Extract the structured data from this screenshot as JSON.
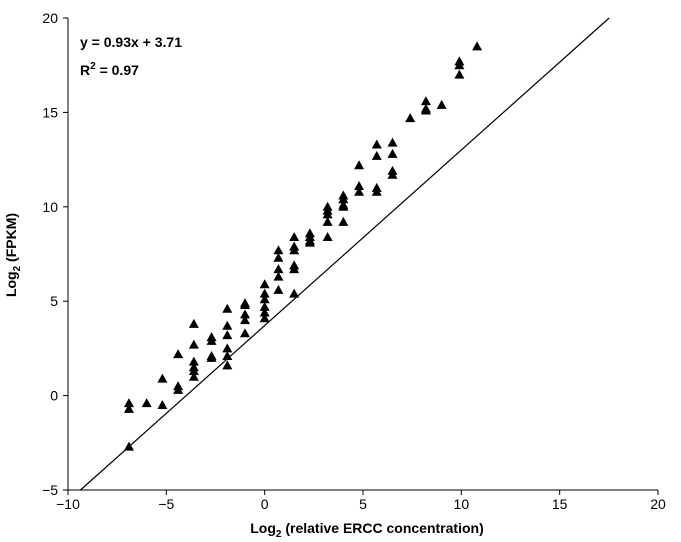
{
  "chart_data": {
    "type": "scatter",
    "title": "",
    "xlabel": {
      "prefix": "Log",
      "subscript": "2",
      "suffix": " (relative ERCC concentration)"
    },
    "ylabel": {
      "prefix": "Log",
      "subscript": "2",
      "suffix": " (FPKM)"
    },
    "xlim": [
      -10,
      20
    ],
    "ylim": [
      -5,
      20
    ],
    "x_ticks": [
      -10,
      -5,
      0,
      5,
      10,
      15,
      20
    ],
    "y_ticks": [
      -5,
      0,
      5,
      10,
      15,
      20
    ],
    "x_tick_labels": [
      "−10",
      "−5",
      "0",
      "5",
      "10",
      "15",
      "20"
    ],
    "y_tick_labels": [
      "−5",
      "0",
      "5",
      "10",
      "15",
      "20"
    ],
    "grid": false,
    "legend": "none",
    "marker": "triangle",
    "marker_color": "#000000",
    "annotations": {
      "equation": "y = 0.93x + 3.71",
      "r_squared": {
        "prefix": "R",
        "superscript": "2",
        "suffix": " = 0.97"
      }
    },
    "fit_line": {
      "slope": 0.93,
      "intercept": 3.71
    },
    "points": [
      [
        -6.9,
        -0.4
      ],
      [
        -6.9,
        -0.7
      ],
      [
        -6.9,
        -2.7
      ],
      [
        -6.0,
        -0.4
      ],
      [
        -5.2,
        0.9
      ],
      [
        -5.2,
        -0.5
      ],
      [
        -4.4,
        2.2
      ],
      [
        -4.4,
        0.5
      ],
      [
        -4.4,
        0.3
      ],
      [
        -3.6,
        3.8
      ],
      [
        -3.6,
        2.7
      ],
      [
        -3.6,
        1.8
      ],
      [
        -3.6,
        1.5
      ],
      [
        -3.6,
        1.3
      ],
      [
        -3.6,
        1.0
      ],
      [
        -2.7,
        3.1
      ],
      [
        -2.7,
        2.9
      ],
      [
        -2.7,
        2.1
      ],
      [
        -2.7,
        2.0
      ],
      [
        -1.9,
        4.6
      ],
      [
        -1.9,
        3.7
      ],
      [
        -1.9,
        3.2
      ],
      [
        -1.9,
        2.5
      ],
      [
        -1.9,
        2.1
      ],
      [
        -1.9,
        1.6
      ],
      [
        -1.0,
        4.9
      ],
      [
        -1.0,
        4.8
      ],
      [
        -1.0,
        4.3
      ],
      [
        -1.0,
        4.0
      ],
      [
        -1.0,
        3.3
      ],
      [
        0.0,
        5.9
      ],
      [
        0.0,
        5.4
      ],
      [
        0.0,
        5.1
      ],
      [
        0.0,
        4.7
      ],
      [
        0.0,
        4.4
      ],
      [
        0.0,
        4.1
      ],
      [
        0.7,
        7.7
      ],
      [
        0.7,
        7.3
      ],
      [
        0.7,
        6.7
      ],
      [
        0.7,
        6.3
      ],
      [
        0.7,
        5.6
      ],
      [
        1.5,
        8.4
      ],
      [
        1.5,
        7.9
      ],
      [
        1.5,
        7.7
      ],
      [
        1.5,
        6.9
      ],
      [
        1.5,
        6.7
      ],
      [
        1.5,
        5.4
      ],
      [
        2.3,
        8.6
      ],
      [
        2.3,
        8.4
      ],
      [
        2.3,
        8.2
      ],
      [
        2.3,
        8.1
      ],
      [
        3.2,
        10.0
      ],
      [
        3.2,
        9.8
      ],
      [
        3.2,
        9.6
      ],
      [
        3.2,
        9.2
      ],
      [
        3.2,
        8.4
      ],
      [
        4.0,
        10.6
      ],
      [
        4.0,
        10.4
      ],
      [
        4.0,
        10.1
      ],
      [
        4.0,
        10.0
      ],
      [
        4.0,
        9.2
      ],
      [
        4.8,
        12.2
      ],
      [
        4.8,
        11.1
      ],
      [
        4.8,
        10.8
      ],
      [
        5.7,
        13.3
      ],
      [
        5.7,
        12.7
      ],
      [
        5.7,
        11.0
      ],
      [
        5.7,
        10.8
      ],
      [
        6.5,
        13.4
      ],
      [
        6.5,
        12.8
      ],
      [
        6.5,
        11.9
      ],
      [
        6.5,
        11.7
      ],
      [
        7.4,
        14.7
      ],
      [
        8.2,
        15.6
      ],
      [
        8.2,
        15.2
      ],
      [
        8.2,
        15.1
      ],
      [
        9.0,
        15.4
      ],
      [
        9.9,
        17.7
      ],
      [
        9.9,
        17.5
      ],
      [
        9.9,
        17.0
      ],
      [
        10.8,
        18.5
      ]
    ]
  }
}
